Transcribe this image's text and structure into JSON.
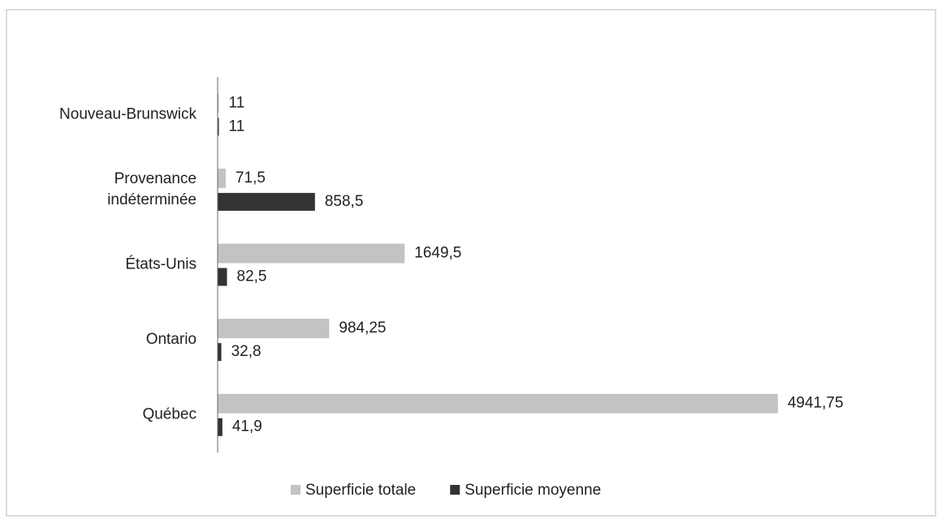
{
  "chart_data": {
    "type": "bar",
    "orientation": "horizontal",
    "categories": [
      "Nouveau-Brunswick",
      "Provenance indéterminée",
      "États-Unis",
      "Ontario",
      "Québec"
    ],
    "series": [
      {
        "name": "Superficie totale",
        "color": "#c3c3c3",
        "values": [
          11,
          71.5,
          1649.5,
          984.25,
          4941.75
        ],
        "value_labels": [
          "11",
          "71,5",
          "1649,5",
          "984,25",
          "4941,75"
        ]
      },
      {
        "name": "Superficie moyenne",
        "color": "#333333",
        "values": [
          11,
          858.5,
          82.5,
          32.8,
          41.9
        ],
        "value_labels": [
          "11",
          "858,5",
          "82,5",
          "32,8",
          "41,9"
        ]
      }
    ],
    "xlim": [
      0,
      5000
    ],
    "legend": "bottom"
  }
}
